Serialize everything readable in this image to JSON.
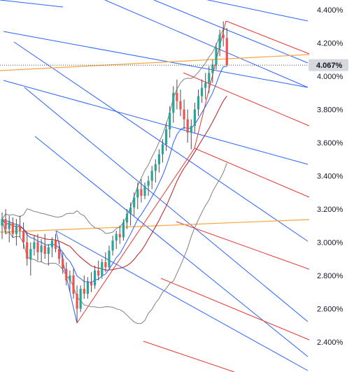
{
  "chart_data": {
    "type": "candlestick",
    "title": "",
    "xlabel": "",
    "ylabel": "",
    "ylim": [
      2.28,
      4.46
    ],
    "y_ticks": [
      "4.400%",
      "4.200%",
      "4.000%",
      "3.800%",
      "3.600%",
      "3.400%",
      "3.200%",
      "3.000%",
      "2.800%",
      "2.600%",
      "2.400%"
    ],
    "last_price": {
      "label": "4.067%",
      "value": 4.067
    },
    "grid": false,
    "colors": {
      "up": "#26a69a",
      "down": "#ef5350",
      "wick": "#4d4d4d",
      "bollinger": "#808080",
      "ema_fast": "#2962ff",
      "ema_slow": "#b71c1c",
      "trend": "#f7a541",
      "pitchfork_blue": "#2962ff",
      "pitchfork_red": "#e53935",
      "price_tag_bg": "#d6d8de"
    },
    "candles": [
      {
        "o": 3.1,
        "h": 3.18,
        "l": 3.02,
        "c": 3.14
      },
      {
        "o": 3.14,
        "h": 3.2,
        "l": 3.05,
        "c": 3.08
      },
      {
        "o": 3.08,
        "h": 3.16,
        "l": 3.0,
        "c": 3.12
      },
      {
        "o": 3.12,
        "h": 3.15,
        "l": 3.03,
        "c": 3.05
      },
      {
        "o": 3.05,
        "h": 3.14,
        "l": 2.98,
        "c": 3.1
      },
      {
        "o": 3.1,
        "h": 3.16,
        "l": 3.03,
        "c": 3.07
      },
      {
        "o": 3.07,
        "h": 3.12,
        "l": 2.96,
        "c": 3.0
      },
      {
        "o": 3.0,
        "h": 3.06,
        "l": 2.86,
        "c": 2.9
      },
      {
        "o": 2.9,
        "h": 3.0,
        "l": 2.8,
        "c": 2.96
      },
      {
        "o": 2.96,
        "h": 3.04,
        "l": 2.92,
        "c": 3.0
      },
      {
        "o": 3.0,
        "h": 3.05,
        "l": 2.89,
        "c": 2.94
      },
      {
        "o": 2.94,
        "h": 3.02,
        "l": 2.88,
        "c": 2.98
      },
      {
        "o": 2.98,
        "h": 3.05,
        "l": 2.9,
        "c": 2.93
      },
      {
        "o": 2.93,
        "h": 2.99,
        "l": 2.86,
        "c": 2.97
      },
      {
        "o": 2.97,
        "h": 3.03,
        "l": 2.91,
        "c": 3.01
      },
      {
        "o": 3.01,
        "h": 3.05,
        "l": 2.94,
        "c": 2.96
      },
      {
        "o": 2.96,
        "h": 3.0,
        "l": 2.87,
        "c": 2.9
      },
      {
        "o": 2.9,
        "h": 2.94,
        "l": 2.81,
        "c": 2.84
      },
      {
        "o": 2.84,
        "h": 2.88,
        "l": 2.74,
        "c": 2.77
      },
      {
        "o": 2.77,
        "h": 2.83,
        "l": 2.7,
        "c": 2.8
      },
      {
        "o": 2.8,
        "h": 2.84,
        "l": 2.66,
        "c": 2.69
      },
      {
        "o": 2.69,
        "h": 2.74,
        "l": 2.52,
        "c": 2.6
      },
      {
        "o": 2.6,
        "h": 2.74,
        "l": 2.58,
        "c": 2.72
      },
      {
        "o": 2.72,
        "h": 2.8,
        "l": 2.66,
        "c": 2.69
      },
      {
        "o": 2.69,
        "h": 2.79,
        "l": 2.66,
        "c": 2.76
      },
      {
        "o": 2.76,
        "h": 2.82,
        "l": 2.7,
        "c": 2.74
      },
      {
        "o": 2.74,
        "h": 2.86,
        "l": 2.72,
        "c": 2.83
      },
      {
        "o": 2.83,
        "h": 2.89,
        "l": 2.77,
        "c": 2.8
      },
      {
        "o": 2.8,
        "h": 2.9,
        "l": 2.78,
        "c": 2.88
      },
      {
        "o": 2.88,
        "h": 2.94,
        "l": 2.82,
        "c": 2.85
      },
      {
        "o": 2.85,
        "h": 2.98,
        "l": 2.84,
        "c": 2.95
      },
      {
        "o": 2.95,
        "h": 3.04,
        "l": 2.92,
        "c": 3.01
      },
      {
        "o": 3.01,
        "h": 3.07,
        "l": 2.96,
        "c": 3.05
      },
      {
        "o": 3.05,
        "h": 3.1,
        "l": 2.99,
        "c": 3.03
      },
      {
        "o": 3.03,
        "h": 3.14,
        "l": 3.01,
        "c": 3.12
      },
      {
        "o": 3.12,
        "h": 3.2,
        "l": 3.08,
        "c": 3.17
      },
      {
        "o": 3.17,
        "h": 3.24,
        "l": 3.1,
        "c": 3.21
      },
      {
        "o": 3.21,
        "h": 3.3,
        "l": 3.16,
        "c": 3.27
      },
      {
        "o": 3.27,
        "h": 3.36,
        "l": 3.2,
        "c": 3.32
      },
      {
        "o": 3.32,
        "h": 3.38,
        "l": 3.24,
        "c": 3.28
      },
      {
        "o": 3.28,
        "h": 3.36,
        "l": 3.26,
        "c": 3.34
      },
      {
        "o": 3.34,
        "h": 3.4,
        "l": 3.28,
        "c": 3.37
      },
      {
        "o": 3.37,
        "h": 3.46,
        "l": 3.32,
        "c": 3.43
      },
      {
        "o": 3.43,
        "h": 3.5,
        "l": 3.36,
        "c": 3.47
      },
      {
        "o": 3.47,
        "h": 3.56,
        "l": 3.42,
        "c": 3.53
      },
      {
        "o": 3.53,
        "h": 3.62,
        "l": 3.48,
        "c": 3.59
      },
      {
        "o": 3.59,
        "h": 3.72,
        "l": 3.55,
        "c": 3.68
      },
      {
        "o": 3.68,
        "h": 3.82,
        "l": 3.63,
        "c": 3.78
      },
      {
        "o": 3.78,
        "h": 3.94,
        "l": 3.72,
        "c": 3.9
      },
      {
        "o": 3.9,
        "h": 3.98,
        "l": 3.8,
        "c": 3.85
      },
      {
        "o": 3.85,
        "h": 3.92,
        "l": 3.76,
        "c": 3.8
      },
      {
        "o": 3.8,
        "h": 3.86,
        "l": 3.68,
        "c": 3.74
      },
      {
        "o": 3.74,
        "h": 3.8,
        "l": 3.6,
        "c": 3.66
      },
      {
        "o": 3.66,
        "h": 3.74,
        "l": 3.56,
        "c": 3.7
      },
      {
        "o": 3.7,
        "h": 3.84,
        "l": 3.66,
        "c": 3.8
      },
      {
        "o": 3.8,
        "h": 3.92,
        "l": 3.76,
        "c": 3.88
      },
      {
        "o": 3.88,
        "h": 3.98,
        "l": 3.84,
        "c": 3.93
      },
      {
        "o": 3.93,
        "h": 4.02,
        "l": 3.86,
        "c": 3.96
      },
      {
        "o": 3.96,
        "h": 4.06,
        "l": 3.9,
        "c": 4.02
      },
      {
        "o": 4.02,
        "h": 4.1,
        "l": 3.96,
        "c": 4.07
      },
      {
        "o": 4.07,
        "h": 4.2,
        "l": 4.04,
        "c": 4.17
      },
      {
        "o": 4.17,
        "h": 4.28,
        "l": 4.12,
        "c": 4.25
      },
      {
        "o": 4.25,
        "h": 4.33,
        "l": 4.18,
        "c": 4.23
      },
      {
        "o": 4.23,
        "h": 4.29,
        "l": 4.06,
        "c": 4.067
      }
    ]
  }
}
